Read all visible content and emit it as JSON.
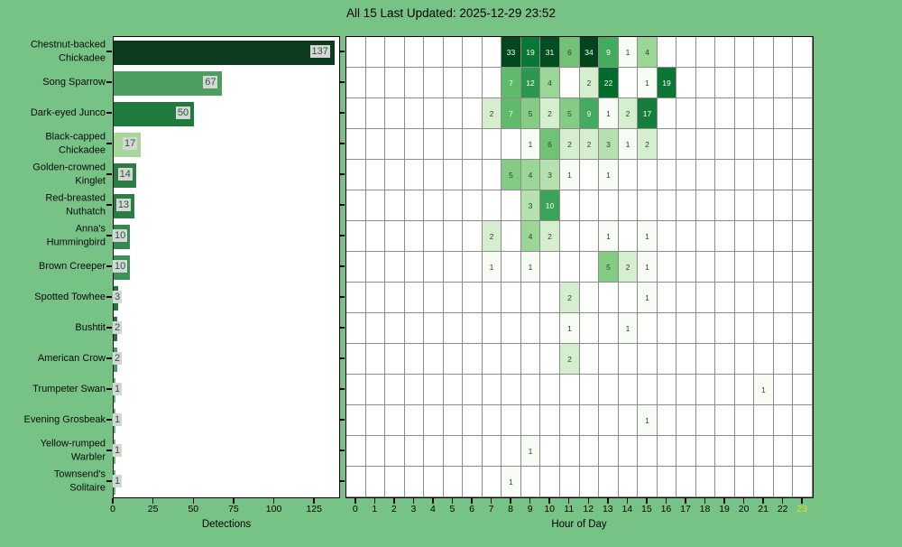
{
  "title": "All 15 Last Updated: 2025-12-29 23:52",
  "axes": {
    "bar_xlabel": "Detections",
    "heat_xlabel": "Hour of Day"
  },
  "colors": {
    "background": "#77c385",
    "plot_background": "#ffffff",
    "plot_border": "#000000",
    "grid": "#8c8c8c",
    "value_label_box": "#d6d6d6",
    "value_label_text": "#235c33",
    "tick_label": "#000000",
    "current_hour_label": "#dce31f",
    "cell_text_dark": "#3a3a3a",
    "cell_text_light": "#ffffff"
  },
  "chart_data": [
    {
      "type": "bar",
      "orientation": "horizontal",
      "xlabel": "Detections",
      "xlim": [
        0,
        140
      ],
      "xticks": [
        0,
        25,
        50,
        75,
        100,
        125
      ],
      "categories": [
        "Chestnut-backed Chickadee",
        "Song Sparrow",
        "Dark-eyed Junco",
        "Black-capped Chickadee",
        "Golden-crowned Kinglet",
        "Red-breasted Nuthatch",
        "Anna's Hummingbird",
        "Brown Creeper",
        "Spotted Towhee",
        "Bushtit",
        "American Crow",
        "Trumpeter Swan",
        "Evening Grosbeak",
        "Yellow-rumped Warbler",
        "Townsend's Solitaire"
      ],
      "category_label_lines": [
        [
          "Chestnut-backed",
          "Chickadee"
        ],
        [
          "Song Sparrow"
        ],
        [
          "Dark-eyed Junco"
        ],
        [
          "Black-capped",
          "Chickadee"
        ],
        [
          "Golden-crowned",
          "Kinglet"
        ],
        [
          "Red-breasted",
          "Nuthatch"
        ],
        [
          "Anna's",
          "Hummingbird"
        ],
        [
          "Brown Creeper"
        ],
        [
          "Spotted Towhee"
        ],
        [
          "Bushtit"
        ],
        [
          "American Crow"
        ],
        [
          "Trumpeter Swan"
        ],
        [
          "Evening Grosbeak"
        ],
        [
          "Yellow-rumped",
          "Warbler"
        ],
        [
          "Townsend's",
          "Solitaire"
        ]
      ],
      "values": [
        137,
        67,
        50,
        17,
        14,
        13,
        10,
        10,
        3,
        2,
        2,
        1,
        1,
        1,
        1
      ],
      "bar_colors": [
        "#0d3b1f",
        "#4d9e61",
        "#1e7a3d",
        "#a6d79b",
        "#2b7d45",
        "#2b7d45",
        "#348a4e",
        "#3c9156",
        "#27743f",
        "#27743f",
        "#4d9e61",
        "#6ab97a",
        "#6ab97a",
        "#6ab97a",
        "#6ab97a"
      ]
    },
    {
      "type": "heatmap",
      "xlabel": "Hour of Day",
      "hours": [
        0,
        1,
        2,
        3,
        4,
        5,
        6,
        7,
        8,
        9,
        10,
        11,
        12,
        13,
        14,
        15,
        16,
        17,
        18,
        19,
        20,
        21,
        22,
        23
      ],
      "highlighted_hour": 23,
      "colormap": "Greens",
      "norm": "log",
      "vmin": 1,
      "vmax": 34,
      "rows": [
        {
          "species": "Chestnut-backed Chickadee",
          "cells": {
            "8": 33,
            "9": 19,
            "10": 31,
            "11": 6,
            "12": 34,
            "13": 9,
            "14": 1,
            "15": 4
          }
        },
        {
          "species": "Song Sparrow",
          "cells": {
            "8": 7,
            "9": 12,
            "10": 4,
            "12": 2,
            "13": 22,
            "15": 1,
            "16": 19
          }
        },
        {
          "species": "Dark-eyed Junco",
          "cells": {
            "7": 2,
            "8": 7,
            "9": 5,
            "10": 2,
            "11": 5,
            "12": 9,
            "13": 1,
            "14": 2,
            "15": 17
          }
        },
        {
          "species": "Black-capped Chickadee",
          "cells": {
            "9": 1,
            "10": 6,
            "11": 2,
            "12": 2,
            "13": 3,
            "14": 1,
            "15": 2
          }
        },
        {
          "species": "Golden-crowned Kinglet",
          "cells": {
            "8": 5,
            "9": 4,
            "10": 3,
            "11": 1,
            "13": 1
          }
        },
        {
          "species": "Red-breasted Nuthatch",
          "cells": {
            "9": 3,
            "10": 10
          }
        },
        {
          "species": "Anna's Hummingbird",
          "cells": {
            "7": 2,
            "9": 4,
            "10": 2,
            "13": 1,
            "15": 1
          }
        },
        {
          "species": "Brown Creeper",
          "cells": {
            "7": 1,
            "9": 1,
            "13": 5,
            "14": 2,
            "15": 1
          }
        },
        {
          "species": "Spotted Towhee",
          "cells": {
            "11": 2,
            "15": 1
          }
        },
        {
          "species": "Bushtit",
          "cells": {
            "11": 1,
            "14": 1
          }
        },
        {
          "species": "American Crow",
          "cells": {
            "11": 2
          }
        },
        {
          "species": "Trumpeter Swan",
          "cells": {
            "21": 1
          }
        },
        {
          "species": "Evening Grosbeak",
          "cells": {
            "15": 1
          }
        },
        {
          "species": "Yellow-rumped Warbler",
          "cells": {
            "9": 1
          }
        },
        {
          "species": "Townsend's Solitaire",
          "cells": {
            "8": 1
          }
        }
      ]
    }
  ]
}
